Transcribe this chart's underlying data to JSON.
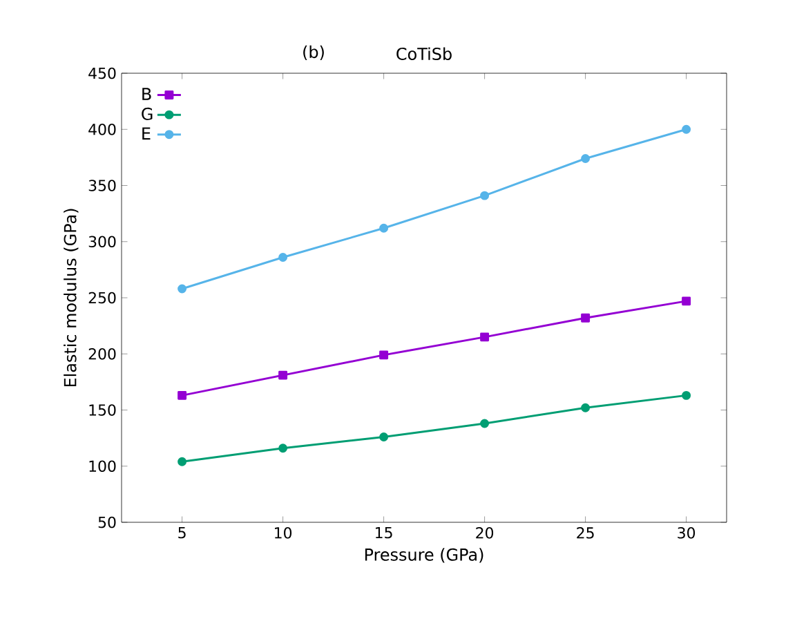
{
  "chart_data": {
    "type": "line",
    "title": "CoTiSb",
    "annotations": [
      "(b)"
    ],
    "xlabel": "Pressure (GPa)",
    "ylabel": "Elastic modulus (GPa)",
    "x": [
      5,
      10,
      15,
      20,
      25,
      30
    ],
    "xlim": [
      2,
      32
    ],
    "xticks": [
      5,
      10,
      15,
      20,
      25,
      30
    ],
    "ylim": [
      50,
      450
    ],
    "yticks": [
      50,
      100,
      150,
      200,
      250,
      300,
      350,
      400,
      450
    ],
    "legend": "top left",
    "grid": false,
    "line_style": "solid",
    "series": [
      {
        "name": "B",
        "color": "#9400d3",
        "marker": "square",
        "values": [
          163,
          181,
          199,
          215,
          232,
          247
        ]
      },
      {
        "name": "G",
        "color": "#009e73",
        "marker": "circle",
        "values": [
          104,
          116,
          126,
          138,
          152,
          163
        ]
      },
      {
        "name": "E",
        "color": "#56b4e9",
        "marker": "circle",
        "values": [
          258,
          286,
          312,
          341,
          374,
          400
        ]
      }
    ]
  }
}
